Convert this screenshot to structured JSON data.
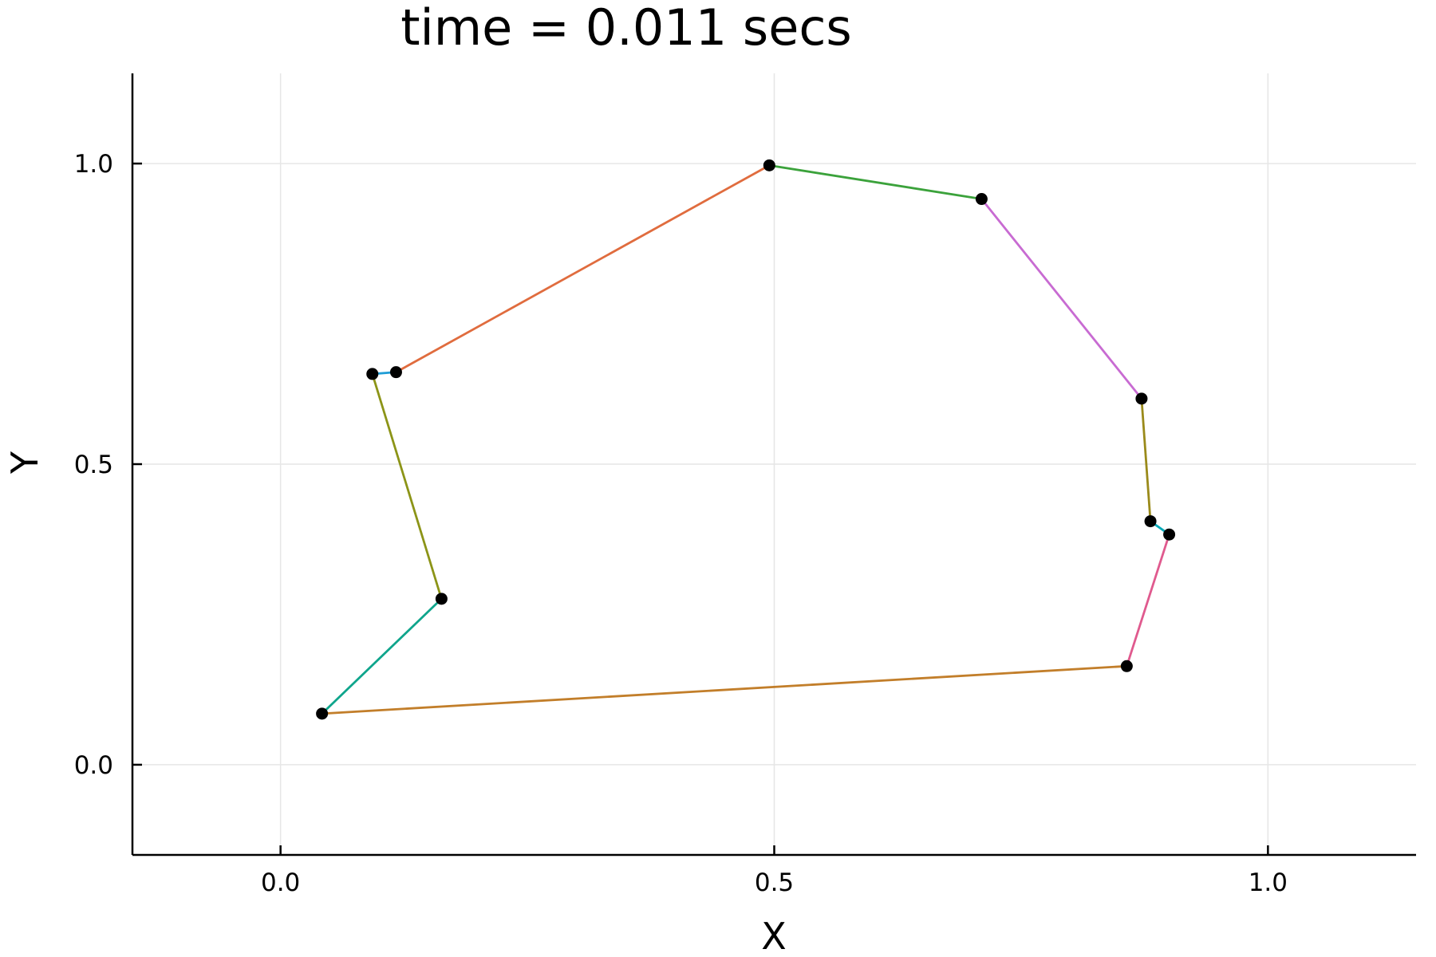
{
  "chart_data": {
    "type": "line",
    "title": "time = 0.011 secs",
    "xlabel": "X",
    "ylabel": "Y",
    "xlim": [
      -0.15,
      1.15
    ],
    "ylim": [
      -0.15,
      1.15
    ],
    "xticks": [
      0.0,
      0.5,
      1.0
    ],
    "xtick_labels": [
      "0.0",
      "0.5",
      "1.0"
    ],
    "yticks": [
      0.0,
      0.5,
      1.0
    ],
    "ytick_labels": [
      "0.0",
      "0.5",
      "1.0"
    ],
    "grid": true,
    "legend": "none",
    "marker_color": "#000000",
    "points": [
      {
        "x": 0.495,
        "y": 0.997
      },
      {
        "x": 0.71,
        "y": 0.941
      },
      {
        "x": 0.872,
        "y": 0.609
      },
      {
        "x": 0.881,
        "y": 0.405
      },
      {
        "x": 0.9,
        "y": 0.383
      },
      {
        "x": 0.857,
        "y": 0.164
      },
      {
        "x": 0.042,
        "y": 0.085
      },
      {
        "x": 0.163,
        "y": 0.276
      },
      {
        "x": 0.093,
        "y": 0.65
      },
      {
        "x": 0.117,
        "y": 0.653
      }
    ],
    "segments": [
      {
        "from": 0,
        "to": 1,
        "color": "#3ba23b"
      },
      {
        "from": 1,
        "to": 2,
        "color": "#c86bd2"
      },
      {
        "from": 2,
        "to": 3,
        "color": "#9a8a1a"
      },
      {
        "from": 3,
        "to": 4,
        "color": "#00a9b8"
      },
      {
        "from": 4,
        "to": 5,
        "color": "#e05a8e"
      },
      {
        "from": 5,
        "to": 6,
        "color": "#c27e2a"
      },
      {
        "from": 6,
        "to": 7,
        "color": "#0fa58c"
      },
      {
        "from": 7,
        "to": 8,
        "color": "#8c9417"
      },
      {
        "from": 8,
        "to": 9,
        "color": "#1f9dd6"
      },
      {
        "from": 9,
        "to": 0,
        "color": "#e06c3e"
      }
    ]
  }
}
